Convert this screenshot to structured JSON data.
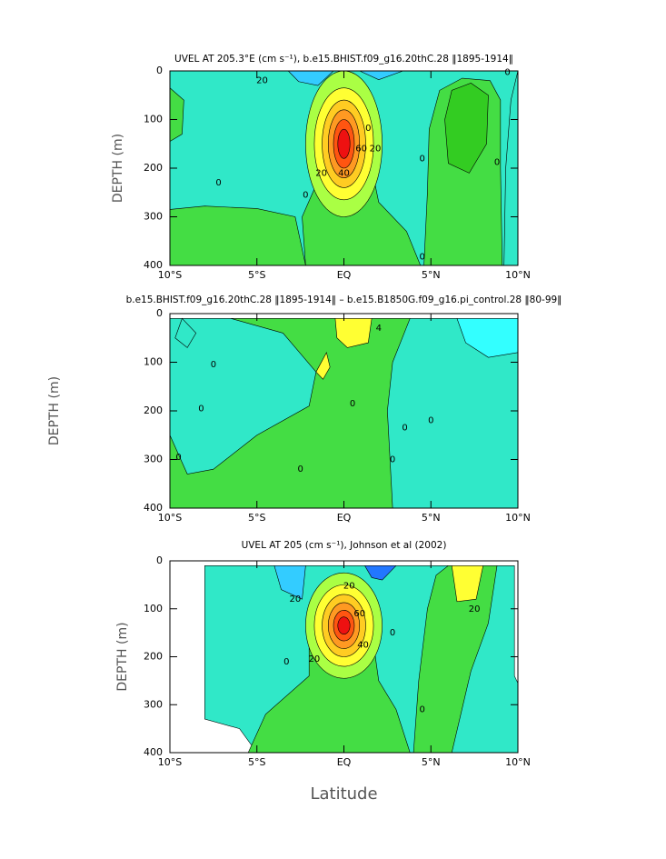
{
  "chart_data": [
    {
      "type": "contour",
      "title": "UVEL AT 205.3°E (cm s⁻¹), b.e15.BHIST.f09_g16.20thC.28 ‖1895-1914‖",
      "ylabel": "DEPTH (m)",
      "xlim": [
        -10,
        10
      ],
      "ylim": [
        0,
        400
      ],
      "xticks": [
        {
          "value": -10,
          "label": "10°S"
        },
        {
          "value": -5,
          "label": "5°S"
        },
        {
          "value": 0,
          "label": "EQ"
        },
        {
          "value": 5,
          "label": "5°N"
        },
        {
          "value": 10,
          "label": "10°N"
        }
      ],
      "yticks": [
        0,
        100,
        200,
        300,
        400
      ],
      "contour_labels": [
        20,
        0,
        0,
        0,
        0,
        0,
        20,
        40,
        60,
        20,
        0,
        0
      ]
    },
    {
      "type": "contour",
      "title": "b.e15.BHIST.f09_g16.20thC.28 ‖1895-1914‖ – b.e15.B1850G.f09_g16.pi_control.28 ‖80-99‖",
      "ylabel": "DEPTH (m)",
      "xlim": [
        -10,
        10
      ],
      "ylim": [
        0,
        400
      ],
      "xticks": [
        {
          "value": -10,
          "label": "10°S"
        },
        {
          "value": -5,
          "label": "5°S"
        },
        {
          "value": 0,
          "label": "EQ"
        },
        {
          "value": 5,
          "label": "5°N"
        },
        {
          "value": 10,
          "label": "10°N"
        }
      ],
      "yticks": [
        0,
        100,
        200,
        300,
        400
      ],
      "contour_labels": [
        4,
        0,
        0,
        0,
        0,
        0,
        0,
        0,
        0
      ]
    },
    {
      "type": "contour",
      "title": "UVEL AT 205 (cm s⁻¹), Johnson et al (2002)",
      "ylabel": "DEPTH (m)",
      "xlabel": "Latitude",
      "xlim": [
        -10,
        10
      ],
      "ylim": [
        0,
        400
      ],
      "xticks": [
        {
          "value": -10,
          "label": "10°S"
        },
        {
          "value": -5,
          "label": "5°S"
        },
        {
          "value": 0,
          "label": "EQ"
        },
        {
          "value": 5,
          "label": "5°N"
        },
        {
          "value": 10,
          "label": "10°N"
        }
      ],
      "yticks": [
        0,
        100,
        200,
        300,
        400
      ],
      "contour_labels": [
        20,
        20,
        0,
        40,
        20,
        60,
        0,
        20,
        0
      ]
    }
  ]
}
